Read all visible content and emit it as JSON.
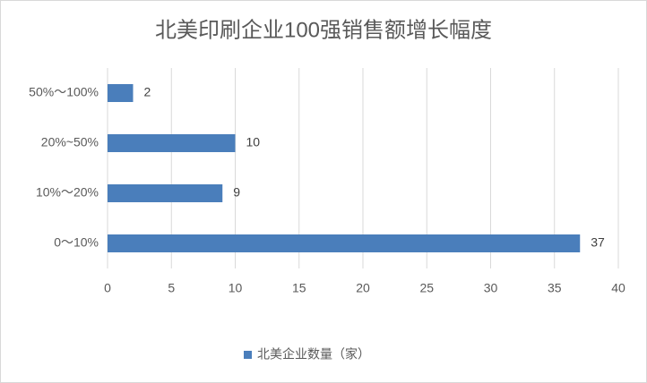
{
  "chart_data": {
    "type": "bar",
    "orientation": "horizontal",
    "title": "北美印刷企业100强销售额增长幅度",
    "categories": [
      "0～10%",
      "10%～20%",
      "20%~50%",
      "50%～100%"
    ],
    "series": [
      {
        "name": "北美企业数量（家）",
        "color": "#4a7ebb",
        "values": [
          37,
          9,
          10,
          2
        ]
      }
    ],
    "xlim": [
      0,
      40
    ],
    "xticks": [
      0,
      5,
      10,
      15,
      20,
      25,
      30,
      35,
      40
    ],
    "grid": true,
    "legend": "bottom"
  }
}
